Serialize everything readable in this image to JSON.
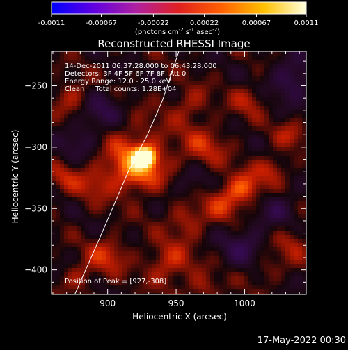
{
  "colorbar": {
    "ticks": [
      "-0.0011",
      "-0.00067",
      "-0.00022",
      "0.00022",
      "0.00067",
      "0.0011"
    ],
    "unit_main": "(photons cm",
    "unit_sup1": "-2",
    "unit_mid": " s",
    "unit_sup2": "-1",
    "unit_end": " asec",
    "unit_sup3": "-2",
    "unit_close": ")",
    "colors": [
      "#0000ff",
      "#6000e0",
      "#b020a0",
      "#e02020",
      "#ff6000",
      "#ffc000",
      "#ffffe0"
    ]
  },
  "image_info": {
    "time_range": "14-Dec-2011 06:37:28.000 to 06:43:28.000",
    "detectors": "Detectors: 3F 4F 5F 6F 7F 8F, Att 0",
    "energy_range": "Energy Range: 12.0 - 25.0 keV",
    "clean_counts": "Clean     Total counts: 1.28E+04",
    "peak_position": "Position of Peak = [927,-308]"
  },
  "footer": {
    "timestamp": "17-May-2022 00:30"
  },
  "chart_data": {
    "type": "heatmap",
    "title": "Reconstructed RHESSI Image",
    "xlabel": "Heliocentric X (arcsec)",
    "ylabel": "Heliocentric Y (arcsec)",
    "xlim": [
      859,
      1045
    ],
    "ylim": [
      -420,
      -222
    ],
    "xticks": [
      900,
      950,
      1000
    ],
    "yticks": [
      -250,
      -300,
      -350,
      -400
    ],
    "colorbar_range": [
      -0.0011,
      0.0011
    ],
    "peak": {
      "x": 927,
      "y": -308
    },
    "limb_line": [
      [
        876,
        -420
      ],
      [
        895,
        -372
      ],
      [
        915,
        -320
      ],
      [
        929,
        -290
      ],
      [
        940,
        -262
      ],
      [
        952,
        -222
      ]
    ],
    "blobs": [
      {
        "x": 927,
        "y": -308,
        "amp": 1.0,
        "s": 5
      },
      {
        "x": 921,
        "y": -318,
        "amp": 0.45,
        "s": 12
      },
      {
        "x": 920,
        "y": -305,
        "amp": 0.3,
        "s": 20
      },
      {
        "x": 875,
        "y": -260,
        "amp": 0.3,
        "s": 10
      },
      {
        "x": 890,
        "y": -330,
        "amp": 0.25,
        "s": 10
      },
      {
        "x": 868,
        "y": -325,
        "amp": 0.25,
        "s": 8
      },
      {
        "x": 1000,
        "y": -333,
        "amp": 0.45,
        "s": 9
      },
      {
        "x": 985,
        "y": -345,
        "amp": 0.35,
        "s": 10
      },
      {
        "x": 1020,
        "y": -318,
        "amp": 0.3,
        "s": 8
      },
      {
        "x": 970,
        "y": -300,
        "amp": 0.3,
        "s": 12
      },
      {
        "x": 960,
        "y": -265,
        "amp": 0.25,
        "s": 10
      },
      {
        "x": 1003,
        "y": -262,
        "amp": 0.25,
        "s": 9
      },
      {
        "x": 1033,
        "y": -290,
        "amp": 0.25,
        "s": 8
      },
      {
        "x": 958,
        "y": -360,
        "amp": 0.3,
        "s": 10
      },
      {
        "x": 945,
        "y": -395,
        "amp": 0.35,
        "s": 12
      },
      {
        "x": 970,
        "y": -415,
        "amp": 0.25,
        "s": 8
      },
      {
        "x": 900,
        "y": -388,
        "amp": 0.35,
        "s": 10
      },
      {
        "x": 880,
        "y": -405,
        "amp": 0.25,
        "s": 8
      },
      {
        "x": 1035,
        "y": -378,
        "amp": 0.25,
        "s": 10
      },
      {
        "x": 1015,
        "y": -400,
        "amp": 0.2,
        "s": 8
      },
      {
        "x": 895,
        "y": -270,
        "amp": -0.3,
        "s": 12
      },
      {
        "x": 880,
        "y": -295,
        "amp": -0.25,
        "s": 10
      },
      {
        "x": 1035,
        "y": -245,
        "amp": -0.35,
        "s": 12
      },
      {
        "x": 1000,
        "y": -380,
        "amp": -0.3,
        "s": 12
      },
      {
        "x": 960,
        "y": -330,
        "amp": -0.2,
        "s": 10
      },
      {
        "x": 1025,
        "y": -350,
        "amp": -0.25,
        "s": 10
      }
    ]
  }
}
